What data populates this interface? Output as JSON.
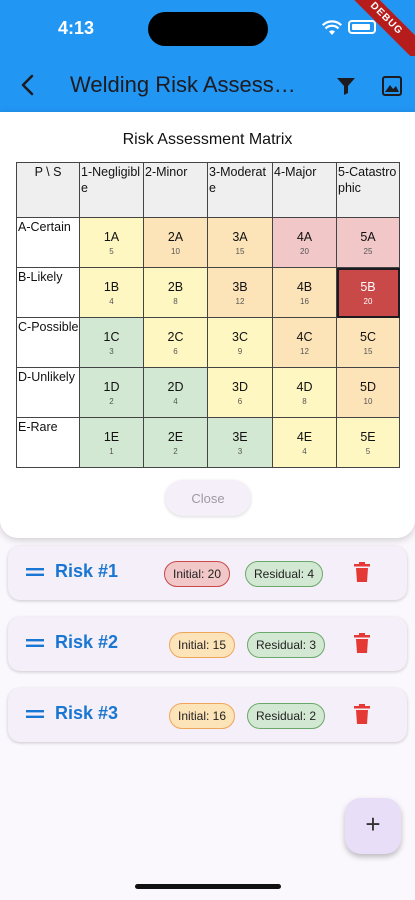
{
  "status": {
    "time": "4:13",
    "debug_label": "DEBUG"
  },
  "appbar": {
    "title": "Welding Risk Assessment",
    "back_icon": "arrow-back-icon",
    "filter_icon": "filter-icon",
    "image_icon": "image-icon"
  },
  "dialog": {
    "title": "Risk Assessment Matrix",
    "corner": "P \\ S",
    "columns": [
      "1-Negligible",
      "2-Minor",
      "3-Moderate",
      "4-Major",
      "5-Catastrophic"
    ],
    "rows": [
      {
        "label": "A-Certain",
        "cells": [
          {
            "code": "1A",
            "score": "5",
            "color": "#fff7c2"
          },
          {
            "code": "2A",
            "score": "10",
            "color": "#fde3b8"
          },
          {
            "code": "3A",
            "score": "15",
            "color": "#fde3b8"
          },
          {
            "code": "4A",
            "score": "20",
            "color": "#f1c7c8"
          },
          {
            "code": "5A",
            "score": "25",
            "color": "#f1c7c8"
          }
        ]
      },
      {
        "label": "B-Likely",
        "cells": [
          {
            "code": "1B",
            "score": "4",
            "color": "#fff7c2"
          },
          {
            "code": "2B",
            "score": "8",
            "color": "#fff7c2"
          },
          {
            "code": "3B",
            "score": "12",
            "color": "#fde3b8"
          },
          {
            "code": "4B",
            "score": "16",
            "color": "#fde3b8"
          },
          {
            "code": "5B",
            "score": "20",
            "color": "#c94848"
          }
        ]
      },
      {
        "label": "C-Possible",
        "cells": [
          {
            "code": "1C",
            "score": "3",
            "color": "#d3e8d2"
          },
          {
            "code": "2C",
            "score": "6",
            "color": "#fff7c2"
          },
          {
            "code": "3C",
            "score": "9",
            "color": "#fff7c2"
          },
          {
            "code": "4C",
            "score": "12",
            "color": "#fde3b8"
          },
          {
            "code": "5C",
            "score": "15",
            "color": "#fde3b8"
          }
        ]
      },
      {
        "label": "D-Unlikely",
        "cells": [
          {
            "code": "1D",
            "score": "2",
            "color": "#d3e8d2"
          },
          {
            "code": "2D",
            "score": "4",
            "color": "#d3e8d2"
          },
          {
            "code": "3D",
            "score": "6",
            "color": "#fff7c2"
          },
          {
            "code": "4D",
            "score": "8",
            "color": "#fff7c2"
          },
          {
            "code": "5D",
            "score": "10",
            "color": "#fde3b8"
          }
        ]
      },
      {
        "label": "E-Rare",
        "cells": [
          {
            "code": "1E",
            "score": "1",
            "color": "#d3e8d2"
          },
          {
            "code": "2E",
            "score": "2",
            "color": "#d3e8d2"
          },
          {
            "code": "3E",
            "score": "3",
            "color": "#d3e8d2"
          },
          {
            "code": "4E",
            "score": "4",
            "color": "#fff7c2"
          },
          {
            "code": "5E",
            "score": "5",
            "color": "#fff7c2"
          }
        ]
      }
    ],
    "selected_cell": "5B",
    "close_label": "Close"
  },
  "risks": [
    {
      "name": "Risk #1",
      "initial": "Initial: 20",
      "initial_color": "#f1c7c8",
      "initial_border": "#c94848",
      "residual": "Residual: 4",
      "residual_color": "#d3e8d2",
      "residual_border": "#6aa86a"
    },
    {
      "name": "Risk #2",
      "initial": "Initial: 15",
      "initial_color": "#fde3b8",
      "initial_border": "#f0a65a",
      "residual": "Residual: 3",
      "residual_color": "#d3e8d2",
      "residual_border": "#6aa86a"
    },
    {
      "name": "Risk #3",
      "initial": "Initial: 16",
      "initial_color": "#fde3b8",
      "initial_border": "#f0a65a",
      "residual": "Residual: 2",
      "residual_color": "#d3e8d2",
      "residual_border": "#6aa86a"
    }
  ],
  "fab": {
    "label": "+"
  },
  "colors": {
    "appbar": "#2196f3",
    "accent": "#1976d2",
    "delete": "#e53935"
  }
}
